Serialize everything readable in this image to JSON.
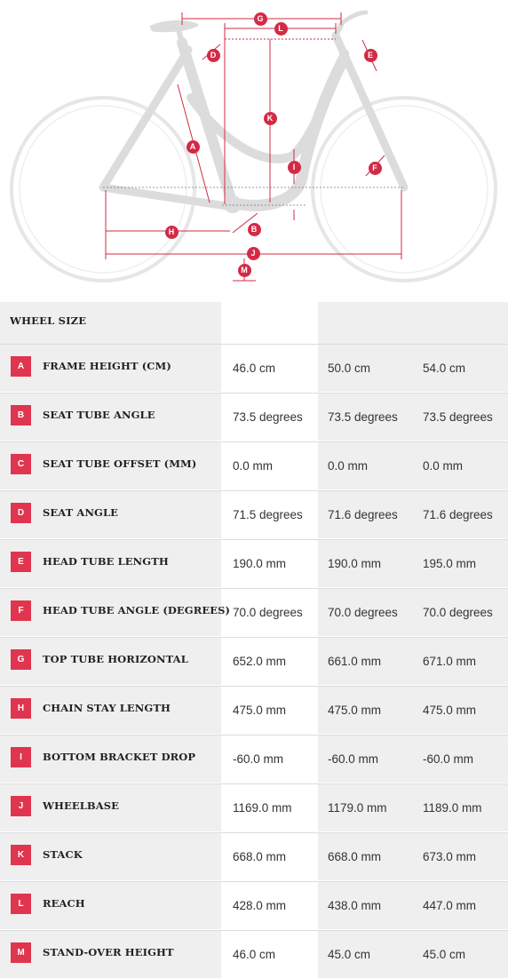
{
  "diagram": {
    "labels": [
      "G",
      "L",
      "D",
      "E",
      "A",
      "K",
      "I",
      "F",
      "H",
      "B",
      "J",
      "M"
    ]
  },
  "table": {
    "header": {
      "title": "WHEEL SIZE",
      "sizes": [
        "",
        "",
        ""
      ]
    },
    "rows": [
      {
        "letter": "A",
        "name": "FRAME HEIGHT (CM)",
        "values": [
          "46.0 cm",
          "50.0 cm",
          "54.0 cm"
        ]
      },
      {
        "letter": "B",
        "name": "SEAT TUBE ANGLE",
        "values": [
          "73.5 degrees",
          "73.5 degrees",
          "73.5 degrees"
        ]
      },
      {
        "letter": "C",
        "name": "SEAT TUBE OFFSET (MM)",
        "values": [
          "0.0 mm",
          "0.0 mm",
          "0.0 mm"
        ]
      },
      {
        "letter": "D",
        "name": "SEAT ANGLE",
        "values": [
          "71.5 degrees",
          "71.6 degrees",
          "71.6 degrees"
        ]
      },
      {
        "letter": "E",
        "name": "HEAD TUBE LENGTH",
        "values": [
          "190.0 mm",
          "190.0 mm",
          "195.0 mm"
        ]
      },
      {
        "letter": "F",
        "name": "HEAD TUBE ANGLE (DEGREES)",
        "values": [
          "70.0 degrees",
          "70.0 degrees",
          "70.0 degrees"
        ]
      },
      {
        "letter": "G",
        "name": "TOP TUBE HORIZONTAL",
        "values": [
          "652.0 mm",
          "661.0 mm",
          "671.0 mm"
        ]
      },
      {
        "letter": "H",
        "name": "CHAIN STAY LENGTH",
        "values": [
          "475.0 mm",
          "475.0 mm",
          "475.0 mm"
        ]
      },
      {
        "letter": "I",
        "name": "BOTTOM BRACKET DROP",
        "values": [
          "-60.0 mm",
          "-60.0 mm",
          "-60.0 mm"
        ]
      },
      {
        "letter": "J",
        "name": "WHEELBASE",
        "values": [
          "1169.0 mm",
          "1179.0 mm",
          "1189.0 mm"
        ]
      },
      {
        "letter": "K",
        "name": "STACK",
        "values": [
          "668.0 mm",
          "668.0 mm",
          "673.0 mm"
        ]
      },
      {
        "letter": "L",
        "name": "REACH",
        "values": [
          "428.0 mm",
          "438.0 mm",
          "447.0 mm"
        ]
      },
      {
        "letter": "M",
        "name": "STAND-OVER HEIGHT",
        "values": [
          "46.0 cm",
          "45.0 cm",
          "45.0 cm"
        ]
      }
    ]
  },
  "colors": {
    "accent": "#e0354f",
    "dimension": "#d32a45",
    "frame": "#dcdcdc",
    "wheel": "#e6e6e6"
  }
}
